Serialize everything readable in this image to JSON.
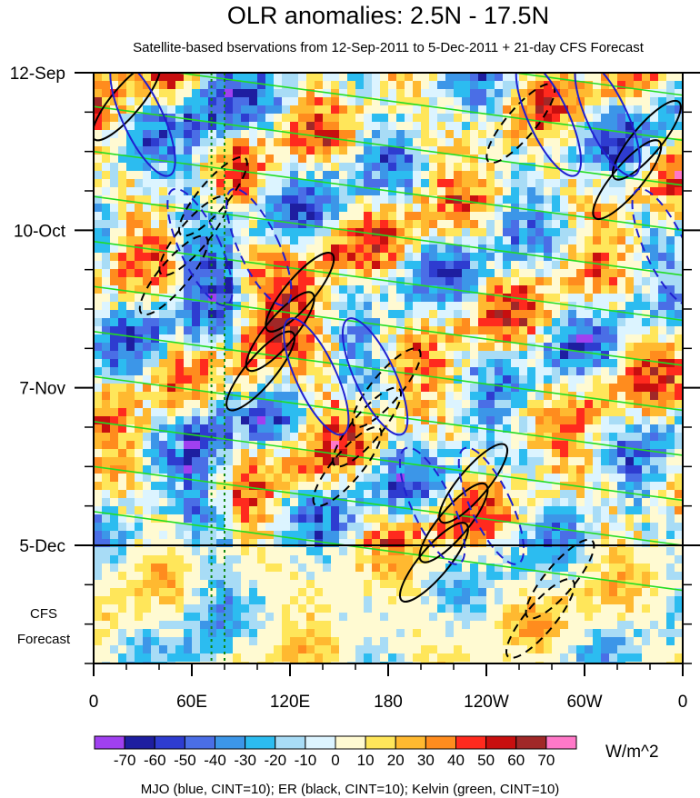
{
  "chart_data": {
    "type": "heatmap",
    "title": "OLR anomalies: 2.5N - 17.5N",
    "subtitle": "Satellite-based bservations from 12-Sep-2011 to 5-Dec-2011 + 21-day CFS Forecast",
    "x_tick_labels": [
      "0",
      "60E",
      "120E",
      "180",
      "120W",
      "60W",
      "0"
    ],
    "x_tick_lon": [
      0,
      60,
      120,
      180,
      240,
      300,
      360
    ],
    "xlim": [
      0,
      360
    ],
    "y_tick_labels": [
      "12-Sep",
      "10-Oct",
      "7-Nov",
      "5-Dec"
    ],
    "y_tick_days": [
      0,
      28,
      56,
      84
    ],
    "ylim_days": [
      0,
      105
    ],
    "observation_end_day": 84,
    "forecast_label": [
      "CFS",
      "Forecast"
    ],
    "colorbar": {
      "units": "W/m^2",
      "labels": [
        "-70",
        "-60",
        "-50",
        "-40",
        "-30",
        "-20",
        "-10",
        "0",
        "10",
        "20",
        "30",
        "40",
        "50",
        "60",
        "70"
      ],
      "colors": [
        "#a040f0",
        "#1e1ea0",
        "#2e3cd0",
        "#4a6ee6",
        "#3c96e8",
        "#2cbcf0",
        "#a8dcf6",
        "#dcf4ff",
        "#fffad2",
        "#ffe65a",
        "#ffb930",
        "#ff8c1e",
        "#ff2a1e",
        "#c80f0f",
        "#a02828",
        "#ff78c8"
      ]
    },
    "reference_lon": [
      72,
      80
    ],
    "contour_legend": "MJO (blue, CINT=10); ER (black, CINT=10); Kelvin (green, CINT=10)",
    "series_colors": {
      "MJO": "#1f1fd0",
      "ER": "#000000",
      "Kelvin": "#22dd22"
    }
  }
}
